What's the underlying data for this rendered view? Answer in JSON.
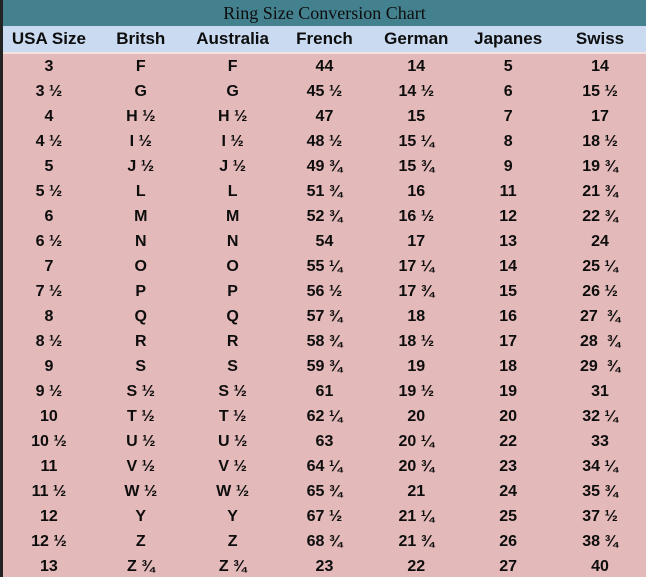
{
  "colors": {
    "title_bg": "#44818f",
    "header_bg": "#c9daf1",
    "body_bg": "#e4b9b9",
    "text": "#0d0d0d",
    "left_border": "#232323"
  },
  "chart_data": {
    "type": "table",
    "title": "Ring Size Conversion Chart",
    "columns": [
      "USA Size",
      "Britsh",
      "Australia",
      "French",
      "German",
      "Japanes",
      "Swiss"
    ],
    "rows": [
      [
        "3",
        "F",
        "F",
        "44",
        "14",
        "5",
        "14"
      ],
      [
        "3 ½",
        "G",
        "G",
        "45 ½",
        "14 ½",
        "6",
        "15 ½"
      ],
      [
        "4",
        "H ½",
        "H ½",
        "47",
        "15",
        "7",
        "17"
      ],
      [
        "4 ½",
        "I ½",
        "I ½",
        "48 ½",
        "15 ¼",
        "8",
        "18 ½"
      ],
      [
        "5",
        "J ½",
        "J ½",
        "49 ¾",
        "15 ¾",
        "9",
        "19 ¾"
      ],
      [
        "5 ½",
        "L",
        "L",
        "51 ¾",
        "16",
        "11",
        "21 ¾"
      ],
      [
        "6",
        "M",
        "M",
        "52 ¾",
        "16 ½",
        "12",
        "22 ¾"
      ],
      [
        "6 ½",
        "N",
        "N",
        "54",
        "17",
        "13",
        "24"
      ],
      [
        "7",
        "O",
        "O",
        "55 ¼",
        "17 ¼",
        "14",
        "25 ¼"
      ],
      [
        "7 ½",
        "P",
        "P",
        "56 ½",
        "17 ¾",
        "15",
        "26 ½"
      ],
      [
        "8",
        "Q",
        "Q",
        "57 ¾",
        "18",
        "16",
        "27  ¾"
      ],
      [
        "8 ½",
        "R",
        "R",
        "58 ¾",
        "18 ½",
        "17",
        "28  ¾"
      ],
      [
        "9",
        "S",
        "S",
        "59 ¾",
        "19",
        "18",
        "29  ¾"
      ],
      [
        "9 ½",
        "S ½",
        "S ½",
        "61",
        "19 ½",
        "19",
        "31"
      ],
      [
        "10",
        "T ½",
        "T ½",
        "62 ¼",
        "20",
        "20",
        "32 ¼"
      ],
      [
        "10 ½",
        "U ½",
        "U ½",
        "63",
        "20 ¼",
        "22",
        "33"
      ],
      [
        "11",
        "V ½",
        "V ½",
        "64 ¼",
        "20 ¾",
        "23",
        "34 ¼"
      ],
      [
        "11 ½",
        "W ½",
        "W ½",
        "65 ¾",
        "21",
        "24",
        "35 ¾"
      ],
      [
        "12",
        "Y",
        "Y",
        "67 ½",
        "21 ¼",
        "25",
        "37 ½"
      ],
      [
        "12 ½",
        "Z",
        "Z",
        "68 ¾",
        "21 ¾",
        "26",
        "38 ¾"
      ],
      [
        "13",
        "Z ¾",
        "Z ¾",
        "23",
        "22",
        "27",
        "40"
      ]
    ]
  }
}
